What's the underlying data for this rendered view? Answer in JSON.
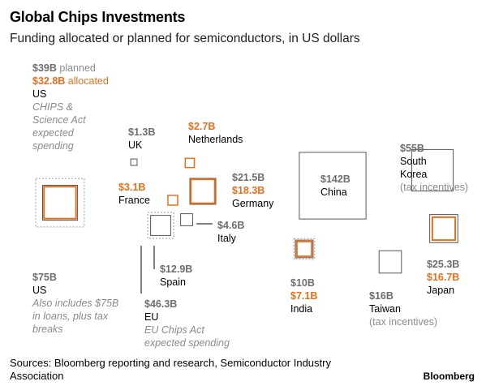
{
  "header": {
    "title": "Global Chips Investments",
    "subtitle": "Funding allocated or planned for semiconductors, in US dollars"
  },
  "colors": {
    "orange": "#e8701a",
    "gray": "#555555",
    "dashed": "#9a9a9a"
  },
  "chart_data": {
    "type": "proportional-squares",
    "title": "Global Chips Investments",
    "subtitle": "Funding allocated or planned for semiconductors, in US dollars",
    "units": "US dollars (billions)",
    "items": [
      {
        "region": "US",
        "label": "US",
        "planned": 39,
        "planned_text": "$39B",
        "planned_word": "planned",
        "allocated": 32.8,
        "allocated_text": "$32.8B",
        "allocated_word": "allocated",
        "note": "CHIPS & Science Act expected spending"
      },
      {
        "region": "US",
        "label": "US",
        "value": 75,
        "value_text": "$75B",
        "note": "Also includes $75B in loans, plus tax breaks"
      },
      {
        "region": "UK",
        "label": "UK",
        "value": 1.3,
        "value_text": "$1.3B"
      },
      {
        "region": "EU",
        "label": "Netherlands",
        "allocated": 2.7,
        "allocated_text": "$2.7B"
      },
      {
        "region": "EU",
        "label": "France",
        "allocated": 3.1,
        "allocated_text": "$3.1B"
      },
      {
        "region": "EU",
        "label": "Germany",
        "value": 21.5,
        "value_text": "$21.5B",
        "allocated": 18.3,
        "allocated_text": "$18.3B"
      },
      {
        "region": "EU",
        "label": "Italy",
        "value": 4.6,
        "value_text": "$4.6B"
      },
      {
        "region": "EU",
        "label": "Spain",
        "value": 12.9,
        "value_text": "$12.9B"
      },
      {
        "region": "EU",
        "label": "EU",
        "value": 46.3,
        "value_text": "$46.3B",
        "note": "EU Chips Act expected spending"
      },
      {
        "region": "China",
        "label": "China",
        "value": 142,
        "value_text": "$142B"
      },
      {
        "region": "South Korea",
        "label": "South Korea",
        "value": 55,
        "value_text": "$55B",
        "note": "(tax incentives)"
      },
      {
        "region": "Japan",
        "label": "Japan",
        "value": 25.3,
        "value_text": "$25.3B",
        "allocated": 16.7,
        "allocated_text": "$16.7B"
      },
      {
        "region": "India",
        "label": "India",
        "value": 10,
        "value_text": "$10B",
        "allocated": 7.1,
        "allocated_text": "$7.1B"
      },
      {
        "region": "Taiwan",
        "label": "Taiwan",
        "value": 16,
        "value_text": "$16B",
        "note": "(tax incentives)"
      }
    ]
  },
  "footer": {
    "sources": "Sources: Bloomberg reporting and research, Semiconductor Industry Association",
    "brand": "Bloomberg"
  }
}
